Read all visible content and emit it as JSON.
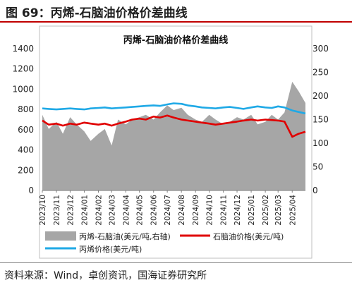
{
  "figure": {
    "title": "图 69：丙烯-石脑油价格价差曲线",
    "source": "资料来源：Wind，卓创资讯，国海证券研究所"
  },
  "colors": {
    "spread_fill": "#a6a6a6",
    "naphtha_line": "#e00000",
    "propylene_line": "#1fa9e6",
    "title_rule": "#c00000"
  },
  "chart_data": {
    "type": "area",
    "title": "丙烯-石脑油价格价差曲线",
    "xlabel": "",
    "ylabel": "",
    "ylim": [
      0,
      1400
    ],
    "y2lim": [
      0,
      300
    ],
    "yticks": [
      0,
      200,
      400,
      600,
      800,
      1000,
      1200,
      1400
    ],
    "y2ticks": [
      0,
      50,
      100,
      150,
      200,
      250,
      300
    ],
    "xticks": [
      "2023/10",
      "2023/11",
      "2023/12",
      "2024/01",
      "2024/02",
      "2024/03",
      "2024/04",
      "2024/05",
      "2024/06",
      "2024/07",
      "2024/08",
      "2024/09",
      "2024/10",
      "2024/11",
      "2024/12",
      "2025/01",
      "2025/02",
      "2025/03",
      "2025/04"
    ],
    "grid": false,
    "legend_position": "bottom",
    "x": [
      "2023/10/01",
      "2023/10/15",
      "2023/11/01",
      "2023/11/15",
      "2023/12/01",
      "2023/12/15",
      "2024/01/01",
      "2024/01/15",
      "2024/02/01",
      "2024/02/15",
      "2024/03/01",
      "2024/03/15",
      "2024/04/01",
      "2024/04/15",
      "2024/05/01",
      "2024/05/15",
      "2024/06/01",
      "2024/06/15",
      "2024/07/01",
      "2024/07/15",
      "2024/08/01",
      "2024/08/15",
      "2024/09/01",
      "2024/09/15",
      "2024/10/01",
      "2024/10/15",
      "2024/11/01",
      "2024/11/15",
      "2024/12/01",
      "2024/12/15",
      "2025/01/01",
      "2025/01/15",
      "2025/02/01",
      "2025/02/15",
      "2025/03/01",
      "2025/03/15",
      "2025/04/01",
      "2025/04/15",
      "2025/04/30"
    ],
    "series": [
      {
        "name": "丙烯-石脑油(美元/吨,右轴)",
        "axis": "right",
        "type": "area",
        "values": [
          160,
          130,
          145,
          120,
          155,
          140,
          125,
          105,
          120,
          130,
          95,
          150,
          140,
          150,
          155,
          160,
          150,
          165,
          180,
          170,
          175,
          160,
          150,
          145,
          160,
          150,
          140,
          145,
          155,
          150,
          160,
          140,
          145,
          160,
          150,
          165,
          230,
          210,
          185
        ]
      },
      {
        "name": "石脑油价格(美元/吨)",
        "axis": "left",
        "type": "line",
        "values": [
          690,
          650,
          660,
          640,
          660,
          650,
          670,
          660,
          650,
          660,
          640,
          660,
          680,
          700,
          710,
          700,
          730,
          720,
          740,
          720,
          700,
          690,
          680,
          670,
          660,
          650,
          660,
          670,
          680,
          690,
          700,
          690,
          700,
          695,
          690,
          680,
          530,
          560,
          580
        ]
      },
      {
        "name": "丙烯价格(美元/吨)",
        "axis": "left",
        "type": "line",
        "values": [
          810,
          805,
          800,
          805,
          810,
          805,
          800,
          810,
          815,
          820,
          810,
          815,
          820,
          825,
          830,
          835,
          840,
          835,
          850,
          860,
          855,
          840,
          830,
          820,
          815,
          810,
          820,
          825,
          815,
          805,
          820,
          830,
          820,
          815,
          830,
          820,
          790,
          775,
          760
        ]
      }
    ]
  }
}
